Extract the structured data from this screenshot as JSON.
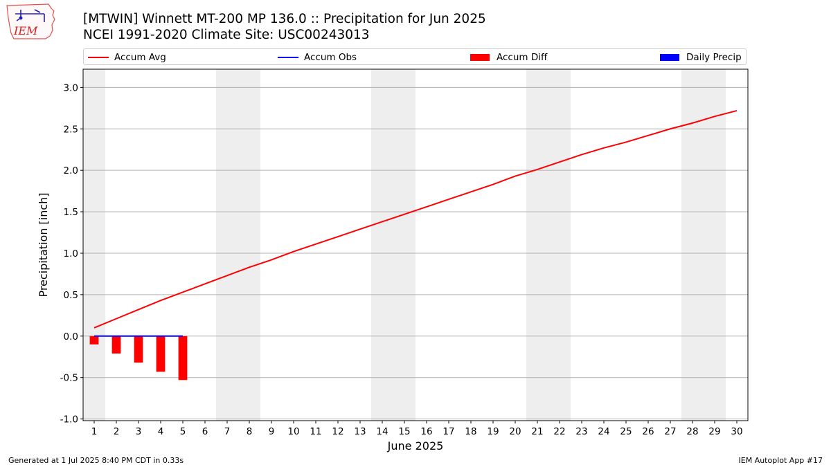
{
  "header": {
    "title_line1": "[MTWIN] Winnett MT-200 MP 136.0 :: Precipitation for Jun 2025",
    "title_line2": "NCEI 1991-2020 Climate Site: USC00243013"
  },
  "logo": {
    "text": "IEM"
  },
  "legend": {
    "items": [
      {
        "label": "Accum Avg",
        "kind": "line",
        "color": "#ff0000"
      },
      {
        "label": "Accum Obs",
        "kind": "line",
        "color": "#0000ff"
      },
      {
        "label": "Accum Diff",
        "kind": "box",
        "color": "#ff0000"
      },
      {
        "label": "Daily Precip",
        "kind": "box",
        "color": "#0000ff"
      }
    ]
  },
  "footer": {
    "left": "Generated at 1 Jul 2025 8:40 PM CDT in 0.33s",
    "right": "IEM Autoplot App #17"
  },
  "chart_data": {
    "type": "bar",
    "xlabel": "June 2025",
    "ylabel": "Precipitation [inch]",
    "xlim": [
      0.5,
      30.5
    ],
    "ylim": [
      -1.02,
      3.22
    ],
    "x_ticks": [
      1,
      2,
      3,
      4,
      5,
      6,
      7,
      8,
      9,
      10,
      11,
      12,
      13,
      14,
      15,
      16,
      17,
      18,
      19,
      20,
      21,
      22,
      23,
      24,
      25,
      26,
      27,
      28,
      29,
      30
    ],
    "y_ticks": [
      "-1.0",
      "-0.5",
      "0.0",
      "0.5",
      "1.0",
      "1.5",
      "2.0",
      "2.5",
      "3.0"
    ],
    "grid": "horizontal",
    "weekend_shading_days": [
      [
        0.5,
        1.5
      ],
      [
        6.5,
        8.5
      ],
      [
        13.5,
        15.5
      ],
      [
        20.5,
        22.5
      ],
      [
        27.5,
        29.5
      ]
    ],
    "shading_color": "#eeeeee",
    "series": [
      {
        "name": "Accum Avg",
        "kind": "line",
        "color": "#ff0000",
        "x": [
          1,
          2,
          3,
          4,
          5,
          6,
          7,
          8,
          9,
          10,
          11,
          12,
          13,
          14,
          15,
          16,
          17,
          18,
          19,
          20,
          21,
          22,
          23,
          24,
          25,
          26,
          27,
          28,
          29,
          30
        ],
        "values": [
          0.1,
          0.21,
          0.32,
          0.43,
          0.53,
          0.63,
          0.73,
          0.83,
          0.92,
          1.02,
          1.11,
          1.2,
          1.29,
          1.38,
          1.47,
          1.56,
          1.65,
          1.74,
          1.83,
          1.93,
          2.01,
          2.1,
          2.19,
          2.27,
          2.34,
          2.42,
          2.5,
          2.57,
          2.65,
          2.72
        ]
      },
      {
        "name": "Accum Obs",
        "kind": "line",
        "color": "#0000ff",
        "x": [
          1,
          2,
          3,
          4,
          5
        ],
        "values": [
          0.0,
          0.0,
          0.0,
          0.0,
          0.0
        ]
      },
      {
        "name": "Accum Diff",
        "kind": "bar",
        "color": "#ff0000",
        "x": [
          1,
          2,
          3,
          4,
          5
        ],
        "values": [
          -0.1,
          -0.21,
          -0.32,
          -0.43,
          -0.53
        ]
      },
      {
        "name": "Daily Precip",
        "kind": "bar",
        "color": "#0000ff",
        "x": [
          1,
          2,
          3,
          4,
          5
        ],
        "values": [
          0.0,
          0.0,
          0.0,
          0.0,
          0.0
        ]
      }
    ]
  }
}
